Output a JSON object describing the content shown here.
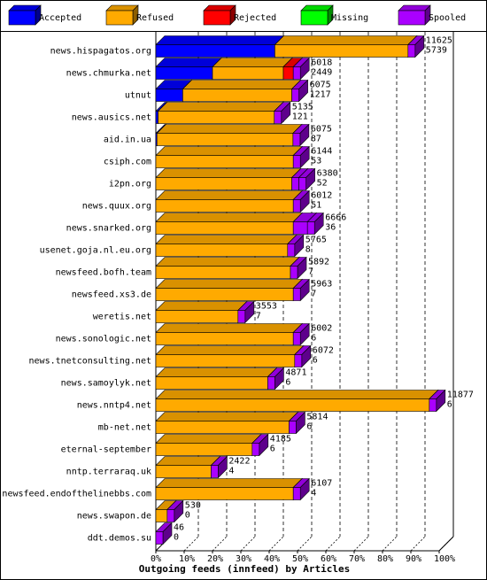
{
  "chart_data": {
    "type": "bar",
    "subtype": "stacked-horizontal-percent-3d",
    "xlabel": "Outgoing feeds (innfeed) by Articles",
    "x_ticks": [
      "0%",
      "10%",
      "20%",
      "30%",
      "40%",
      "50%",
      "60%",
      "70%",
      "80%",
      "90%",
      "100%"
    ],
    "legend_position": "top",
    "legend": [
      {
        "name": "Accepted",
        "color": "#0000ff"
      },
      {
        "name": "Refused",
        "color": "#ffaa00"
      },
      {
        "name": "Rejected",
        "color": "#ff0000"
      },
      {
        "name": "Missing",
        "color": "#00ff00"
      },
      {
        "name": "Spooled",
        "color": "#aa00ff"
      }
    ],
    "rows": [
      {
        "name": "news.hispagatos.org",
        "total": "11625",
        "spooled": "5739",
        "accepted": 0.42,
        "refused": 0.47,
        "rejected": 0.0,
        "missing": 0.0,
        "spooled_frac": 0.0
      },
      {
        "name": "news.chmurka.net",
        "total": "6018",
        "spooled": "2449",
        "accepted": 0.2,
        "refused": 0.25,
        "rejected": 0.035,
        "missing": 0.0,
        "spooled_frac": 0.0
      },
      {
        "name": "utnut",
        "total": "6075",
        "spooled": "1217",
        "accepted": 0.095,
        "refused": 0.385,
        "rejected": 0.0,
        "missing": 0.0,
        "spooled_frac": 0.0
      },
      {
        "name": "news.ausics.net",
        "total": "5135",
        "spooled": "121",
        "accepted": 0.008,
        "refused": 0.41,
        "rejected": 0.0,
        "missing": 0.0,
        "spooled_frac": 0.0
      },
      {
        "name": "aid.in.ua",
        "total": "6075",
        "spooled": "87",
        "accepted": 0.004,
        "refused": 0.48,
        "rejected": 0.0,
        "missing": 0.0,
        "spooled_frac": 0.0
      },
      {
        "name": "csiph.com",
        "total": "6144",
        "spooled": "53",
        "accepted": 0.0,
        "refused": 0.485,
        "rejected": 0.0,
        "missing": 0.0,
        "spooled_frac": 0.0
      },
      {
        "name": "i2pn.org",
        "total": "6380",
        "spooled": "52",
        "accepted": 0.0,
        "refused": 0.48,
        "rejected": 0.0,
        "missing": 0.0,
        "spooled_frac": 0.025
      },
      {
        "name": "news.quux.org",
        "total": "6012",
        "spooled": "51",
        "accepted": 0.0,
        "refused": 0.485,
        "rejected": 0.0,
        "missing": 0.0,
        "spooled_frac": 0.0
      },
      {
        "name": "news.snarked.org",
        "total": "6666",
        "spooled": "36",
        "accepted": 0.0,
        "refused": 0.485,
        "rejected": 0.0,
        "missing": 0.0,
        "spooled_frac": 0.05
      },
      {
        "name": "usenet.goja.nl.eu.org",
        "total": "5765",
        "spooled": "8",
        "accepted": 0.0,
        "refused": 0.465,
        "rejected": 0.0,
        "missing": 0.0,
        "spooled_frac": 0.0
      },
      {
        "name": "newsfeed.bofh.team",
        "total": "5892",
        "spooled": "7",
        "accepted": 0.0,
        "refused": 0.475,
        "rejected": 0.0,
        "missing": 0.0,
        "spooled_frac": 0.0
      },
      {
        "name": "newsfeed.xs3.de",
        "total": "5963",
        "spooled": "7",
        "accepted": 0.0,
        "refused": 0.485,
        "rejected": 0.0,
        "missing": 0.0,
        "spooled_frac": 0.0
      },
      {
        "name": "weretis.net",
        "total": "3553",
        "spooled": "7",
        "accepted": 0.0,
        "refused": 0.29,
        "rejected": 0.0,
        "missing": 0.0,
        "spooled_frac": 0.0
      },
      {
        "name": "news.sonologic.net",
        "total": "6002",
        "spooled": "6",
        "accepted": 0.0,
        "refused": 0.485,
        "rejected": 0.0,
        "missing": 0.0,
        "spooled_frac": 0.0
      },
      {
        "name": "news.tnetconsulting.net",
        "total": "6072",
        "spooled": "6",
        "accepted": 0.0,
        "refused": 0.49,
        "rejected": 0.0,
        "missing": 0.0,
        "spooled_frac": 0.0
      },
      {
        "name": "news.samoylyk.net",
        "total": "4871",
        "spooled": "6",
        "accepted": 0.0,
        "refused": 0.395,
        "rejected": 0.0,
        "missing": 0.0,
        "spooled_frac": 0.0
      },
      {
        "name": "news.nntp4.net",
        "total": "11877",
        "spooled": "6",
        "accepted": 0.0,
        "refused": 0.965,
        "rejected": 0.0,
        "missing": 0.0,
        "spooled_frac": 0.0
      },
      {
        "name": "mb-net.net",
        "total": "5814",
        "spooled": "6",
        "accepted": 0.0,
        "refused": 0.47,
        "rejected": 0.0,
        "missing": 0.0,
        "spooled_frac": 0.0
      },
      {
        "name": "eternal-september",
        "total": "4185",
        "spooled": "6",
        "accepted": 0.0,
        "refused": 0.34,
        "rejected": 0.0,
        "missing": 0.0,
        "spooled_frac": 0.0
      },
      {
        "name": "nntp.terraraq.uk",
        "total": "2422",
        "spooled": "4",
        "accepted": 0.0,
        "refused": 0.195,
        "rejected": 0.0,
        "missing": 0.0,
        "spooled_frac": 0.0
      },
      {
        "name": "newsfeed.endofthelinebbs.com",
        "total": "6107",
        "spooled": "4",
        "accepted": 0.0,
        "refused": 0.485,
        "rejected": 0.0,
        "missing": 0.0,
        "spooled_frac": 0.0
      },
      {
        "name": "news.swapon.de",
        "total": "530",
        "spooled": "0",
        "accepted": 0.0,
        "refused": 0.04,
        "rejected": 0.0,
        "missing": 0.0,
        "spooled_frac": 0.0
      },
      {
        "name": "ddt.demos.su",
        "total": "46",
        "spooled": "0",
        "accepted": 0.0,
        "refused": 0.0,
        "rejected": 0.0,
        "missing": 0.0,
        "spooled_frac": 0.0
      }
    ]
  }
}
